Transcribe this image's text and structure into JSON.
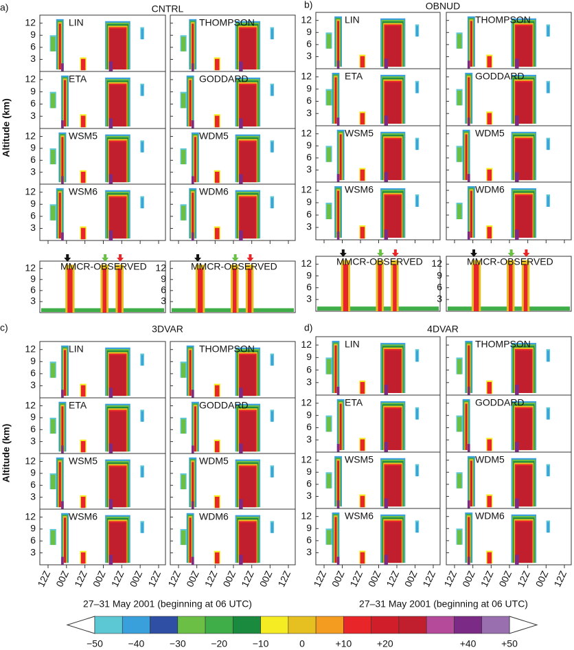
{
  "y_axis_label": "Altitude (km)",
  "yticks": [
    3,
    6,
    9,
    12
  ],
  "xticks": [
    "12Z",
    "00Z",
    "12Z",
    "00Z",
    "12Z",
    "00Z",
    "12Z"
  ],
  "x_axis_label": "27–31 May 2001 (beginning at 06 UTC)",
  "groups": [
    {
      "letter": "a)",
      "title": "CNTRL",
      "panels": [
        "LIN",
        "THOMPSON",
        "ETA",
        "GODDARD",
        "WSM5",
        "WDM5",
        "WSM6",
        "WDM6"
      ],
      "observed": [
        "MMCR-OBSERVED",
        "MMCR-OBSERVED"
      ]
    },
    {
      "letter": "b)",
      "title": "OBNUD",
      "panels": [
        "LIN",
        "THOMPSON",
        "ETA",
        "GODDARD",
        "WSM5",
        "WDM5",
        "WSM6",
        "WDM6"
      ],
      "observed": [
        "MMCR-OBSERVED",
        "MMCR-OBSERVED"
      ]
    },
    {
      "letter": "c)",
      "title": "3DVAR",
      "panels": [
        "LIN",
        "THOMPSON",
        "ETA",
        "GODDARD",
        "WSM5",
        "WDM5",
        "WSM6",
        "WDM6"
      ]
    },
    {
      "letter": "d)",
      "title": "4DVAR",
      "panels": [
        "LIN",
        "THOMPSON",
        "ETA",
        "GODDARD",
        "WSM5",
        "WDM5",
        "WSM6",
        "WDM6"
      ]
    }
  ],
  "colorbar": {
    "colors": [
      "#5bc8d4",
      "#3aa0dc",
      "#2e4fa4",
      "#6bbf45",
      "#3fae49",
      "#1a8a3e",
      "#f5ec23",
      "#e6c020",
      "#f39c1f",
      "#e8262a",
      "#d01f2b",
      "#c21f2e",
      "#b54a9a",
      "#7b2a86",
      "#9a6fb0"
    ],
    "lim": [
      -50,
      50
    ],
    "ticks": [
      {
        "value": -50,
        "label": "−50"
      },
      {
        "value": -40,
        "label": "−40"
      },
      {
        "value": -30,
        "label": "−30"
      },
      {
        "value": -20,
        "label": "−20"
      },
      {
        "value": -10,
        "label": "−10"
      },
      0,
      {
        "value": 10,
        "label": "+10"
      },
      {
        "value": 20,
        "label": "+20"
      },
      {
        "value": 40,
        "label": "+40"
      },
      {
        "value": 50,
        "label": "+50"
      }
    ]
  }
}
